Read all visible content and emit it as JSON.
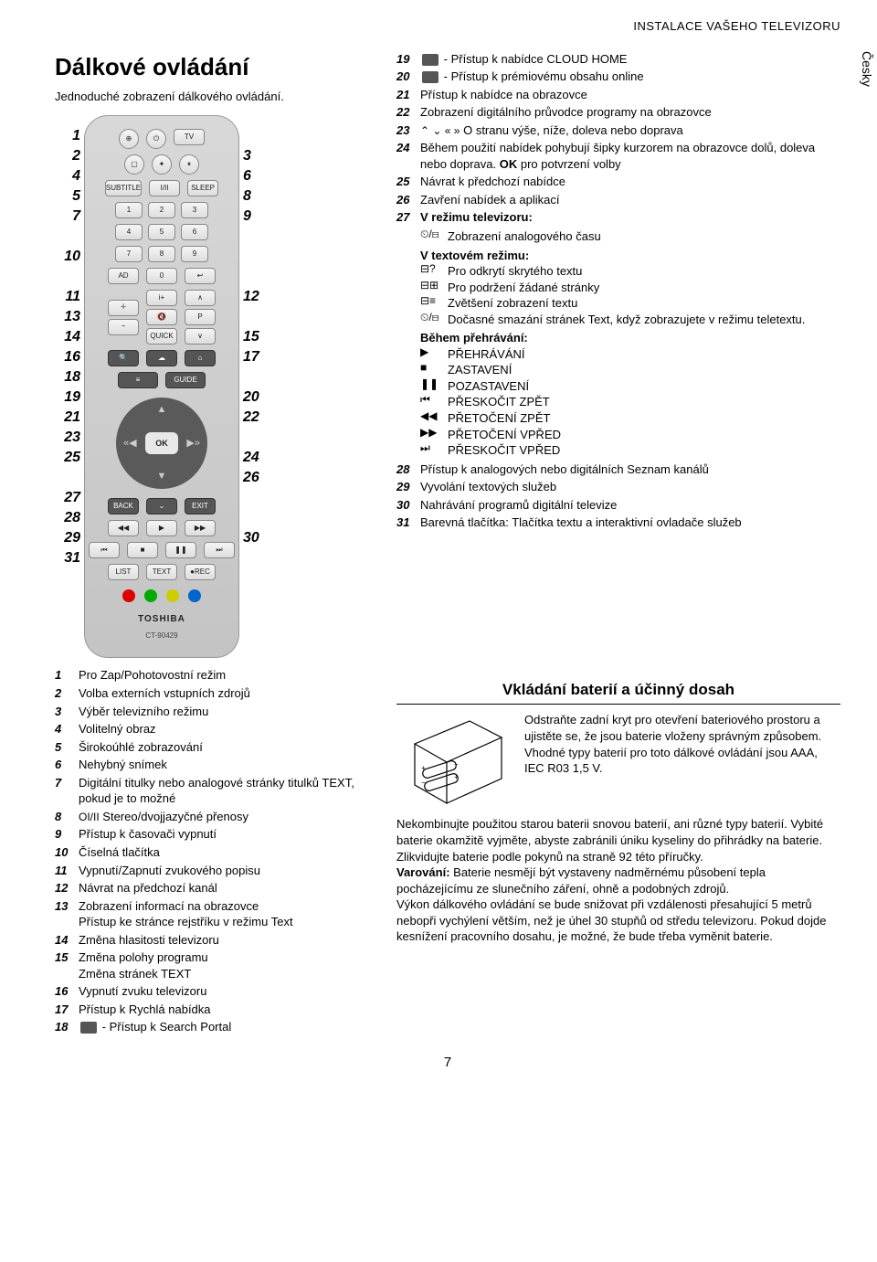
{
  "header": "INSTALACE VAŠEHO TELEVIZORU",
  "side_tab": "Česky",
  "title": "Dálkové ovládání",
  "subtitle": "Jednoduché zobrazení dálkového ovládání.",
  "remote": {
    "tv_label": "TV",
    "subtitle_label": "SUBTITLE",
    "stereo_label": "I/II",
    "sleep_label": "SLEEP",
    "keys": [
      "1",
      "2",
      "3",
      "4",
      "5",
      "6",
      "7",
      "8",
      "9"
    ],
    "ad_label": "AD",
    "zero": "0",
    "quick_label": "QUICK",
    "p_label": "P",
    "guide_label": "GUIDE",
    "ok_label": "OK",
    "back_label": "BACK",
    "exit_label": "EXIT",
    "list_label": "LIST",
    "text_label": "TEXT",
    "rec_label": "REC",
    "brand": "TOSHIBA",
    "model": "CT-90429",
    "color_dots": [
      "#d00",
      "#0a0",
      "#cc0",
      "#06c"
    ]
  },
  "left_numbers": [
    "1",
    "2",
    "4",
    "5",
    "7",
    "",
    "10",
    "",
    "11",
    "13",
    "14",
    "16",
    "18",
    "19",
    "21",
    "23",
    "25",
    "",
    "27",
    "28",
    "29",
    "31"
  ],
  "right_numbers": [
    "",
    "3",
    "6",
    "8",
    "9",
    "",
    "",
    "",
    "12",
    "",
    "15",
    "17",
    "",
    "20",
    "22",
    "",
    "24",
    "26",
    "",
    "",
    "30",
    ""
  ],
  "list_left": [
    {
      "n": "1",
      "t": "Pro Zap/Pohotovostní režim"
    },
    {
      "n": "2",
      "t": "Volba externích vstupních zdrojů"
    },
    {
      "n": "3",
      "t": "Výběr televizního režimu"
    },
    {
      "n": "4",
      "t": "Volitelný obraz"
    },
    {
      "n": "5",
      "t": "Širokoúhlé zobrazování"
    },
    {
      "n": "6",
      "t": "Nehybný snímek"
    },
    {
      "n": "7",
      "t": "Digitální titulky nebo analogové stránky titulků TEXT, pokud je to možné"
    },
    {
      "n": "8",
      "t": "Stereo/dvojjazyčné přenosy",
      "icon": "OI/II"
    },
    {
      "n": "9",
      "t": "Přístup k časovači vypnutí"
    },
    {
      "n": "10",
      "t": "Číselná tlačítka"
    },
    {
      "n": "11",
      "t": "Vypnutí/Zapnutí zvukového popisu"
    },
    {
      "n": "12",
      "t": "Návrat na předchozí kanál"
    },
    {
      "n": "13",
      "t": "Zobrazení informací na obrazovce\nPřístup ke stránce rejstříku v režimu Text"
    },
    {
      "n": "14",
      "t": "Změna hlasitosti televizoru"
    },
    {
      "n": "15",
      "t": "Změna polohy programu\nZměna stránek TEXT"
    },
    {
      "n": "16",
      "t": "Vypnutí zvuku televizoru"
    },
    {
      "n": "17",
      "t": "Přístup k Rychlá nabídka"
    },
    {
      "n": "18",
      "t": "- Přístup k Search Portal",
      "icon_box": "search"
    }
  ],
  "list_right": [
    {
      "n": "19",
      "t": "- Přístup k nabídce CLOUD HOME",
      "icon_box": "cloud"
    },
    {
      "n": "20",
      "t": "- Přístup k prémiovému obsahu online",
      "icon_box": "home"
    },
    {
      "n": "21",
      "t": "Přístup k nabídce na obrazovce"
    },
    {
      "n": "22",
      "t": "Zobrazení digitálního průvodce programy na obrazovce"
    },
    {
      "n": "23",
      "t": "O stranu výše, níže, doleva nebo doprava",
      "icon": "arrows"
    },
    {
      "n": "24",
      "t": "Během použití nabídek pohybují šipky kurzorem na obrazovce dolů, doleva nebo doprava. OK pro potvrzení volby",
      "bold": "OK"
    },
    {
      "n": "25",
      "t": "Návrat k předchozí nabídce"
    },
    {
      "n": "26",
      "t": "Zavření nabídek a aplikací"
    },
    {
      "n": "27",
      "t": "V režimu televizoru:",
      "bold_first": true
    }
  ],
  "item27_tv_line": {
    "icons": "⏲/⊟",
    "text": "Zobrazení analogového času"
  },
  "item27_text_header": "V textovém režimu:",
  "item27_text_rows": [
    {
      "icon": "⊟?",
      "text": "Pro odkrytí skrytého textu"
    },
    {
      "icon": "⊟⊞",
      "text": "Pro podržení žádané stránky"
    },
    {
      "icon": "⊟≡",
      "text": "Zvětšení zobrazení textu"
    },
    {
      "icon": "⏲/⊟",
      "text": "Dočasné smazání stránek Text, když zobrazujete v režimu teletextu."
    }
  ],
  "item27_play_header": "Během přehrávání:",
  "item27_play_rows": [
    {
      "icon": "▶",
      "text": "PŘEHRÁVÁNÍ"
    },
    {
      "icon": "■",
      "text": "ZASTAVENÍ"
    },
    {
      "icon": "❚❚",
      "text": "POZASTAVENÍ"
    },
    {
      "icon": "⏮",
      "text": "PŘESKOČIT ZPĚT"
    },
    {
      "icon": "◀◀",
      "text": "PŘETOČENÍ ZPĚT"
    },
    {
      "icon": "▶▶",
      "text": "PŘETOČENÍ VPŘED"
    },
    {
      "icon": "⏭",
      "text": "PŘESKOČIT VPŘED"
    }
  ],
  "list_right_tail": [
    {
      "n": "28",
      "t": "Přístup k analogových nebo digitálních Seznam kanálů"
    },
    {
      "n": "29",
      "t": "Vyvolání textových služeb"
    },
    {
      "n": "30",
      "t": "Nahrávání programů digitální televize"
    },
    {
      "n": "31",
      "t": "Barevná tlačítka: Tlačítka textu a interaktivní ovladače služeb"
    }
  ],
  "battery": {
    "heading": "Vkládání baterií a účinný dosah",
    "p1": "Odstraňte zadní kryt pro otevření bateriového prostoru a ujistěte se, že jsou baterie vloženy správným způsobem. Vhodné typy baterií pro toto dálkové ovládání jsou AAA, IEC R03 1,5 V.",
    "p2": "Nekombinujte použitou starou baterii snovou baterií, ani různé typy baterií. Vybité baterie okamžitě vyjměte, abyste zabránili úniku kyseliny do přihrádky na baterie. Zlikvidujte baterie podle pokynů na straně 92 této příručky.",
    "warn_label": "Varování:",
    "p3": "Baterie nesmějí být vystaveny nadměrnému působení tepla pocházejícímu ze slunečního záření, ohně a podobných zdrojů.",
    "p4": "Výkon dálkového ovládání se bude snižovat při vzdálenosti přesahující 5 metrů nebopři vychýlení větším, než je úhel 30 stupňů od středu televizoru. Pokud dojde kesnížení pracovního dosahu, je možné, že bude třeba vyměnit baterie."
  },
  "page_number": "7"
}
